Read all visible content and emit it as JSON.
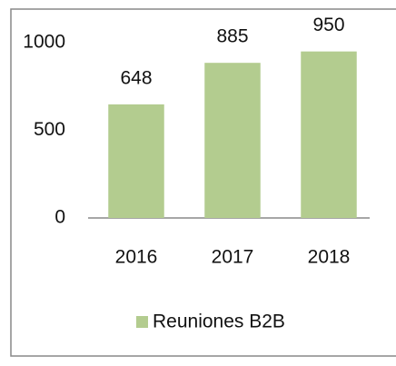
{
  "chart_data": {
    "type": "bar",
    "categories": [
      "2016",
      "2017",
      "2018"
    ],
    "series": [
      {
        "name": "Reuniones B2B",
        "color": "#b3cc8f",
        "values": [
          648,
          885,
          950
        ]
      }
    ],
    "ylim": [
      0,
      1000
    ],
    "yticks": [
      0,
      500,
      1000
    ],
    "grid": false,
    "legend": "bottom",
    "data_labels": true
  }
}
